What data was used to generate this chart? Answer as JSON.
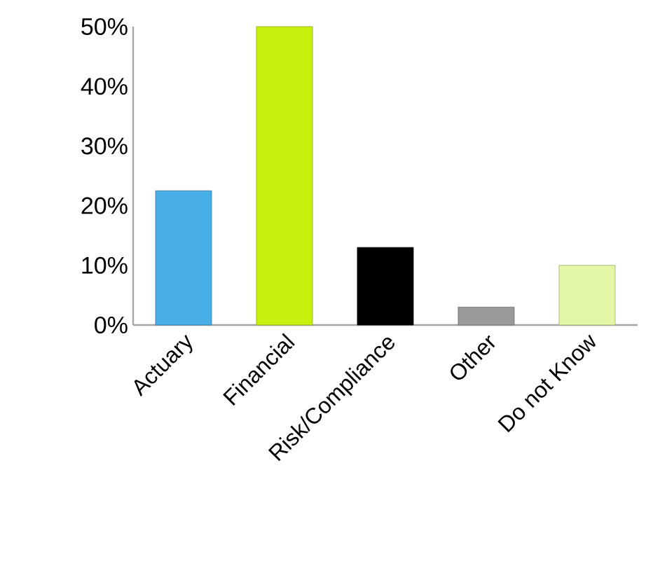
{
  "chart_data": {
    "type": "bar",
    "categories": [
      "Actuary",
      "Financial",
      "Risk/Compliance",
      "Other",
      "Do not Know"
    ],
    "values": [
      22.5,
      50,
      13,
      3,
      10
    ],
    "colors": [
      "#47aee6",
      "#c8f00f",
      "#000000",
      "#999999",
      "#e2f8a6"
    ],
    "ylim": [
      0,
      50
    ],
    "yticks": [
      {
        "value": 0,
        "label": "0%"
      },
      {
        "value": 10,
        "label": "10%"
      },
      {
        "value": 20,
        "label": "20%"
      },
      {
        "value": 30,
        "label": "30%"
      },
      {
        "value": 40,
        "label": "40%"
      },
      {
        "value": 50,
        "label": "50%"
      }
    ],
    "grid": false
  }
}
